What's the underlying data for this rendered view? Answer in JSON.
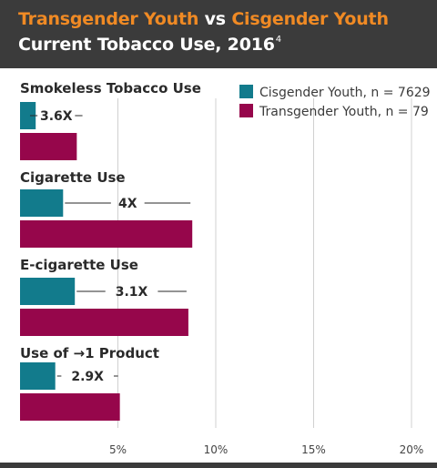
{
  "title": {
    "part1": "Transgender Youth",
    "part2": " vs ",
    "part3": "Cisgender Youth",
    "line2": "Current Tobacco Use, 2016",
    "footnote_marker": "4"
  },
  "colors": {
    "header_bg": "#3b3b3b",
    "title_accent": "#f08a24",
    "cisgender": "#127b8c",
    "transgender": "#96064b",
    "grid": "#d0d0d0"
  },
  "chart_data": {
    "type": "bar",
    "orientation": "horizontal",
    "categories": [
      "Smokeless Tobacco Use",
      "Cigarette Use",
      "E-cigarette Use",
      "Use of →1 Product"
    ],
    "series": [
      {
        "name": "Cisgender Youth, n = 7629",
        "values": [
          0.8,
          2.2,
          2.8,
          1.8
        ]
      },
      {
        "name": "Transgender Youth, n = 79",
        "values": [
          2.9,
          8.8,
          8.6,
          5.1
        ]
      }
    ],
    "ratio_labels": [
      "3.6X",
      "4X",
      "3.1X",
      "2.9X"
    ],
    "xlim": [
      0,
      20
    ],
    "xticks": [
      5,
      10,
      15,
      20
    ],
    "xtick_labels": [
      "5%",
      "10%",
      "15%",
      "20%"
    ],
    "grid": true,
    "legend_position": "top-right"
  }
}
